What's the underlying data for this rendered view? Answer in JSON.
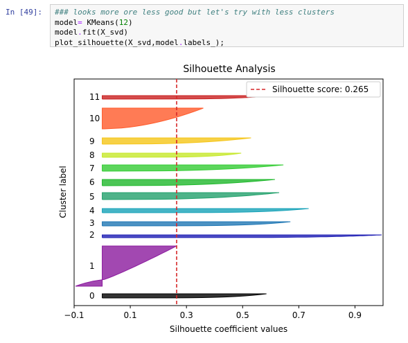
{
  "cell": {
    "prompt": "In [49]:",
    "code": [
      {
        "parts": [
          {
            "t": "### looks more ore less good but let's try with less clusters",
            "c": "comment"
          }
        ]
      },
      {
        "parts": [
          {
            "t": "model",
            "c": ""
          },
          {
            "t": "=",
            "c": "op"
          },
          {
            "t": " KMeans(",
            "c": ""
          },
          {
            "t": "12",
            "c": "num"
          },
          {
            "t": ")",
            "c": ""
          }
        ]
      },
      {
        "parts": [
          {
            "t": "model",
            "c": ""
          },
          {
            "t": ".",
            "c": "op"
          },
          {
            "t": "fit(X_svd)",
            "c": ""
          }
        ]
      },
      {
        "parts": [
          {
            "t": "plot_silhouette(X_svd,model",
            "c": ""
          },
          {
            "t": ".",
            "c": "op"
          },
          {
            "t": "labels_);",
            "c": ""
          }
        ]
      }
    ]
  },
  "chart_data": {
    "type": "area",
    "title": "Silhouette Analysis",
    "xlabel": "Silhouette coefficient values",
    "ylabel": "Cluster label",
    "xlim": [
      -0.1,
      1.0
    ],
    "xticks": [
      -0.1,
      0.1,
      0.3,
      0.5,
      0.7,
      0.9
    ],
    "xtick_labels": [
      "−0.1",
      "0.1",
      "0.3",
      "0.5",
      "0.7",
      "0.9"
    ],
    "grid": false,
    "legend": {
      "position": "top-right",
      "entries": [
        "Silhouette score: 0.265"
      ]
    },
    "silhouette_score": 0.265,
    "score_line_color": "#d62728",
    "clusters": [
      {
        "label": "0",
        "color": "#000000",
        "max": 0.585,
        "min": 0.0,
        "size": 4,
        "band": [
          0.0,
          0.0
        ],
        "shape": "thin"
      },
      {
        "label": "1",
        "color": "#8b1a9e",
        "max": 0.265,
        "min": -0.095,
        "size": 56,
        "band": [
          0.0,
          1.0
        ],
        "shape": "tail"
      },
      {
        "label": "2",
        "color": "#1f1fb4",
        "max": 0.995,
        "min": 0.0,
        "size": 3,
        "band": [
          0.0,
          0.0
        ],
        "shape": "thin"
      },
      {
        "label": "3",
        "color": "#1f77b4",
        "max": 0.67,
        "min": 0.0,
        "size": 5,
        "band": [
          0.0,
          0.0
        ],
        "shape": "thin"
      },
      {
        "label": "4",
        "color": "#17a2b8",
        "max": 0.735,
        "min": 0.0,
        "size": 5,
        "band": [
          0.0,
          0.0
        ],
        "shape": "thin"
      },
      {
        "label": "5",
        "color": "#22a06b",
        "max": 0.63,
        "min": 0.0,
        "size": 8,
        "band": [
          0.0,
          0.0
        ],
        "shape": "wedge"
      },
      {
        "label": "6",
        "color": "#1fb82c",
        "max": 0.615,
        "min": 0.0,
        "size": 7,
        "band": [
          0.0,
          0.0
        ],
        "shape": "wedge"
      },
      {
        "label": "7",
        "color": "#33cc33",
        "max": 0.645,
        "min": 0.0,
        "size": 7,
        "band": [
          0.0,
          0.0
        ],
        "shape": "wedge"
      },
      {
        "label": "8",
        "color": "#c6e82a",
        "max": 0.495,
        "min": 0.0,
        "size": 5,
        "band": [
          0.0,
          0.0
        ],
        "shape": "thin"
      },
      {
        "label": "9",
        "color": "#f5c518",
        "max": 0.53,
        "min": 0.0,
        "size": 8,
        "band": [
          0.0,
          0.0
        ],
        "shape": "wedge"
      },
      {
        "label": "10",
        "color": "#ff5a2a",
        "max": 0.36,
        "min": 0.0,
        "size": 28,
        "band": [
          0.0,
          0.0
        ],
        "shape": "big"
      },
      {
        "label": "11",
        "color": "#c91f1f",
        "max": 0.605,
        "min": 0.0,
        "size": 4,
        "band": [
          0.0,
          0.0
        ],
        "shape": "thin"
      }
    ]
  }
}
